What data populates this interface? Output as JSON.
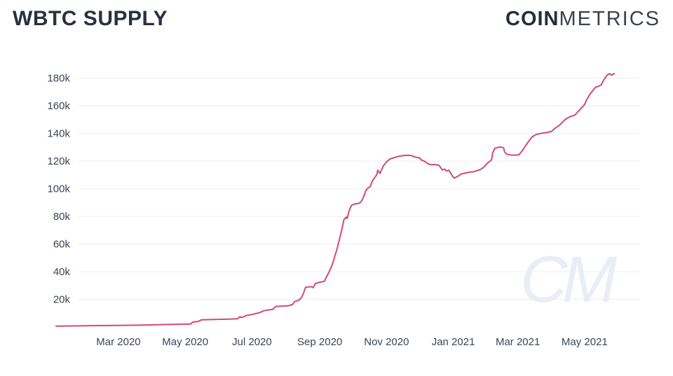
{
  "header": {
    "title": "WBTC SUPPLY",
    "logo_bold": "COIN",
    "logo_light": "METRICS"
  },
  "watermark_text": "CM",
  "colors": {
    "line": "#d14b73",
    "grid": "#ededf2",
    "title": "#2b3040",
    "axis_label": "#3d4358",
    "logo": "#272c3c",
    "watermark": "#e9edf6"
  },
  "chart_data": {
    "type": "line",
    "title": "WBTC SUPPLY",
    "xlabel": "",
    "ylabel": "",
    "unit": "WBTC supply in thousands (k)",
    "grid": "horizontal gridlines only, no axis lines",
    "legend": "none",
    "ylim": [
      0,
      190
    ],
    "x_range": [
      "2020-01-04",
      "2021-05-28"
    ],
    "y_ticks": [
      {
        "value": 20,
        "label": "20k"
      },
      {
        "value": 40,
        "label": "40k"
      },
      {
        "value": 60,
        "label": "60k"
      },
      {
        "value": 80,
        "label": "80k"
      },
      {
        "value": 100,
        "label": "100k"
      },
      {
        "value": 120,
        "label": "120k"
      },
      {
        "value": 140,
        "label": "140k"
      },
      {
        "value": 160,
        "label": "160k"
      },
      {
        "value": 180,
        "label": "180k"
      }
    ],
    "x_ticks": [
      {
        "date": "2020-03-01",
        "label": "Mar 2020"
      },
      {
        "date": "2020-05-01",
        "label": "May 2020"
      },
      {
        "date": "2020-07-01",
        "label": "Jul 2020"
      },
      {
        "date": "2020-09-01",
        "label": "Sep 2020"
      },
      {
        "date": "2020-11-01",
        "label": "Nov 2020"
      },
      {
        "date": "2021-01-01",
        "label": "Jan 2021"
      },
      {
        "date": "2021-03-01",
        "label": "Mar 2021"
      },
      {
        "date": "2021-05-01",
        "label": "May 2021"
      }
    ],
    "series": [
      {
        "name": "WBTC Supply",
        "points": [
          [
            "2020-01-04",
            0.6
          ],
          [
            "2020-02-01",
            0.9
          ],
          [
            "2020-03-01",
            1.1
          ],
          [
            "2020-03-20",
            1.3
          ],
          [
            "2020-04-10",
            1.7
          ],
          [
            "2020-04-25",
            2.0
          ],
          [
            "2020-05-06",
            2.2
          ],
          [
            "2020-05-08",
            3.6
          ],
          [
            "2020-05-13",
            4.0
          ],
          [
            "2020-05-16",
            5.2
          ],
          [
            "2020-05-31",
            5.5
          ],
          [
            "2020-06-10",
            5.7
          ],
          [
            "2020-06-18",
            6.0
          ],
          [
            "2020-06-20",
            7.4
          ],
          [
            "2020-06-22",
            6.9
          ],
          [
            "2020-06-26",
            8.3
          ],
          [
            "2020-07-01",
            9.0
          ],
          [
            "2020-07-08",
            10.4
          ],
          [
            "2020-07-12",
            11.8
          ],
          [
            "2020-07-17",
            12.4
          ],
          [
            "2020-07-20",
            12.7
          ],
          [
            "2020-07-23",
            14.9
          ],
          [
            "2020-08-03",
            15.3
          ],
          [
            "2020-08-07",
            16.2
          ],
          [
            "2020-08-09",
            18.4
          ],
          [
            "2020-08-13",
            19.4
          ],
          [
            "2020-08-15",
            21.0
          ],
          [
            "2020-08-17",
            24.0
          ],
          [
            "2020-08-19",
            28.8
          ],
          [
            "2020-08-24",
            29.2
          ],
          [
            "2020-08-26",
            28.4
          ],
          [
            "2020-08-28",
            31.4
          ],
          [
            "2020-09-01",
            32.4
          ],
          [
            "2020-09-05",
            33.0
          ],
          [
            "2020-09-07",
            36.0
          ],
          [
            "2020-09-09",
            39.0
          ],
          [
            "2020-09-11",
            42.5
          ],
          [
            "2020-09-13",
            46.5
          ],
          [
            "2020-09-15",
            52.0
          ],
          [
            "2020-09-17",
            57.0
          ],
          [
            "2020-09-19",
            63.5
          ],
          [
            "2020-09-21",
            70.0
          ],
          [
            "2020-09-23",
            77.5
          ],
          [
            "2020-09-25",
            79.5
          ],
          [
            "2020-09-26",
            78.5
          ],
          [
            "2020-09-28",
            84.5
          ],
          [
            "2020-09-30",
            88.0
          ],
          [
            "2020-10-03",
            89.0
          ],
          [
            "2020-10-07",
            89.5
          ],
          [
            "2020-10-09",
            91.0
          ],
          [
            "2020-10-11",
            94.0
          ],
          [
            "2020-10-13",
            98.5
          ],
          [
            "2020-10-15",
            100.5
          ],
          [
            "2020-10-17",
            101.5
          ],
          [
            "2020-10-19",
            105.5
          ],
          [
            "2020-10-21",
            108.0
          ],
          [
            "2020-10-23",
            110.0
          ],
          [
            "2020-10-24",
            113.5
          ],
          [
            "2020-10-26",
            111.0
          ],
          [
            "2020-10-29",
            116.5
          ],
          [
            "2020-11-01",
            119.5
          ],
          [
            "2020-11-04",
            121.5
          ],
          [
            "2020-11-08",
            122.5
          ],
          [
            "2020-11-12",
            123.5
          ],
          [
            "2020-11-16",
            124.0
          ],
          [
            "2020-11-20",
            124.3
          ],
          [
            "2020-11-24",
            124.0
          ],
          [
            "2020-11-27",
            123.0
          ],
          [
            "2020-12-01",
            122.4
          ],
          [
            "2020-12-03",
            120.8
          ],
          [
            "2020-12-06",
            119.8
          ],
          [
            "2020-12-09",
            118.0
          ],
          [
            "2020-12-12",
            117.4
          ],
          [
            "2020-12-16",
            117.5
          ],
          [
            "2020-12-19",
            117.0
          ],
          [
            "2020-12-22",
            113.6
          ],
          [
            "2020-12-24",
            114.3
          ],
          [
            "2020-12-26",
            112.8
          ],
          [
            "2020-12-28",
            113.5
          ],
          [
            "2020-12-31",
            109.5
          ],
          [
            "2021-01-02",
            107.7
          ],
          [
            "2021-01-05",
            109.0
          ],
          [
            "2021-01-08",
            110.6
          ],
          [
            "2021-01-12",
            111.4
          ],
          [
            "2021-01-16",
            112.0
          ],
          [
            "2021-01-20",
            112.4
          ],
          [
            "2021-01-23",
            113.3
          ],
          [
            "2021-01-26",
            114.0
          ],
          [
            "2021-01-29",
            115.8
          ],
          [
            "2021-02-01",
            118.4
          ],
          [
            "2021-02-03",
            119.6
          ],
          [
            "2021-02-05",
            121.0
          ],
          [
            "2021-02-06",
            126.0
          ],
          [
            "2021-02-08",
            129.3
          ],
          [
            "2021-02-11",
            130.0
          ],
          [
            "2021-02-14",
            130.2
          ],
          [
            "2021-02-16",
            129.6
          ],
          [
            "2021-02-17",
            126.5
          ],
          [
            "2021-02-19",
            125.0
          ],
          [
            "2021-02-23",
            124.4
          ],
          [
            "2021-02-27",
            124.4
          ],
          [
            "2021-03-02",
            124.6
          ],
          [
            "2021-03-05",
            127.5
          ],
          [
            "2021-03-08",
            131.0
          ],
          [
            "2021-03-11",
            134.5
          ],
          [
            "2021-03-14",
            137.5
          ],
          [
            "2021-03-17",
            139.0
          ],
          [
            "2021-03-20",
            139.8
          ],
          [
            "2021-03-24",
            140.3
          ],
          [
            "2021-03-28",
            140.8
          ],
          [
            "2021-04-01",
            141.6
          ],
          [
            "2021-04-04",
            143.8
          ],
          [
            "2021-04-07",
            145.3
          ],
          [
            "2021-04-10",
            147.5
          ],
          [
            "2021-04-13",
            150.0
          ],
          [
            "2021-04-16",
            151.5
          ],
          [
            "2021-04-19",
            152.6
          ],
          [
            "2021-04-22",
            153.2
          ],
          [
            "2021-04-25",
            155.8
          ],
          [
            "2021-04-28",
            158.4
          ],
          [
            "2021-05-01",
            161.0
          ],
          [
            "2021-05-03",
            164.5
          ],
          [
            "2021-05-06",
            168.5
          ],
          [
            "2021-05-09",
            171.5
          ],
          [
            "2021-05-11",
            173.5
          ],
          [
            "2021-05-14",
            174.3
          ],
          [
            "2021-05-16",
            175.0
          ],
          [
            "2021-05-18",
            178.0
          ],
          [
            "2021-05-20",
            180.5
          ],
          [
            "2021-05-22",
            182.5
          ],
          [
            "2021-05-24",
            183.3
          ],
          [
            "2021-05-26",
            182.2
          ],
          [
            "2021-05-27",
            182.8
          ],
          [
            "2021-05-28",
            183.5
          ]
        ]
      }
    ]
  }
}
